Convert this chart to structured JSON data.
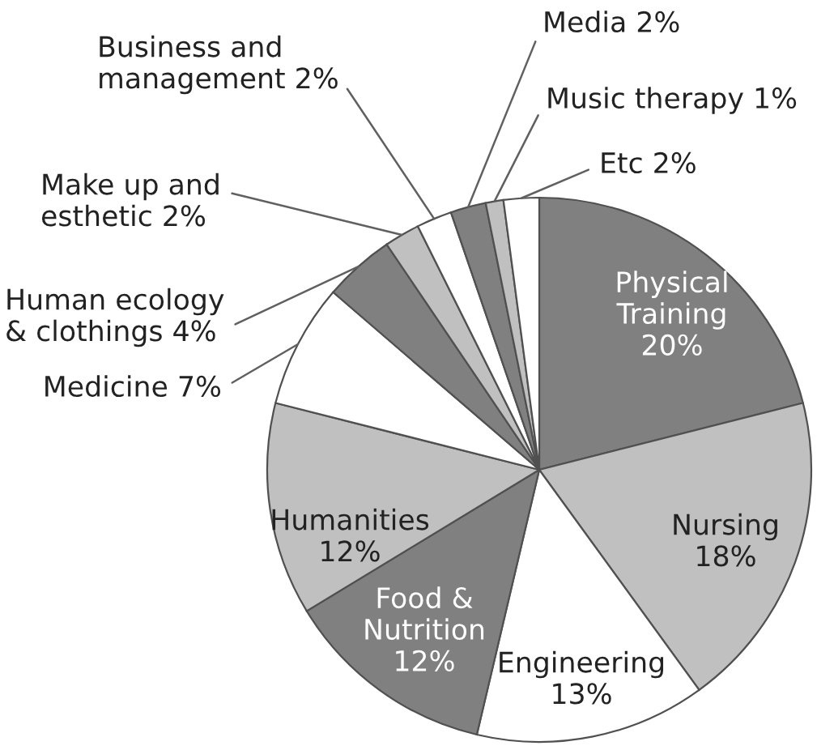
{
  "chart_data": {
    "type": "pie",
    "categories": [
      "Physical Training",
      "Nursing",
      "Engineering",
      "Food & Nutrition",
      "Humanities",
      "Medicine",
      "Human ecology & clothings",
      "Make up and esthetic",
      "Business and management",
      "Media",
      "Music therapy",
      "Etc"
    ],
    "values": [
      20,
      18,
      13,
      12,
      12,
      7,
      4,
      2,
      2,
      2,
      1,
      2
    ],
    "value_labels": [
      "20%",
      "18%",
      "13%",
      "12%",
      "12%",
      "7%",
      "4%",
      "2%",
      "2%",
      "2%",
      "1%",
      "2%"
    ],
    "colors": [
      "#808080",
      "#c0c0c0",
      "#ffffff",
      "#808080",
      "#c0c0c0",
      "#ffffff",
      "#808080",
      "#c0c0c0",
      "#ffffff",
      "#808080",
      "#c0c0c0",
      "#ffffff"
    ],
    "data_labels": true
  }
}
